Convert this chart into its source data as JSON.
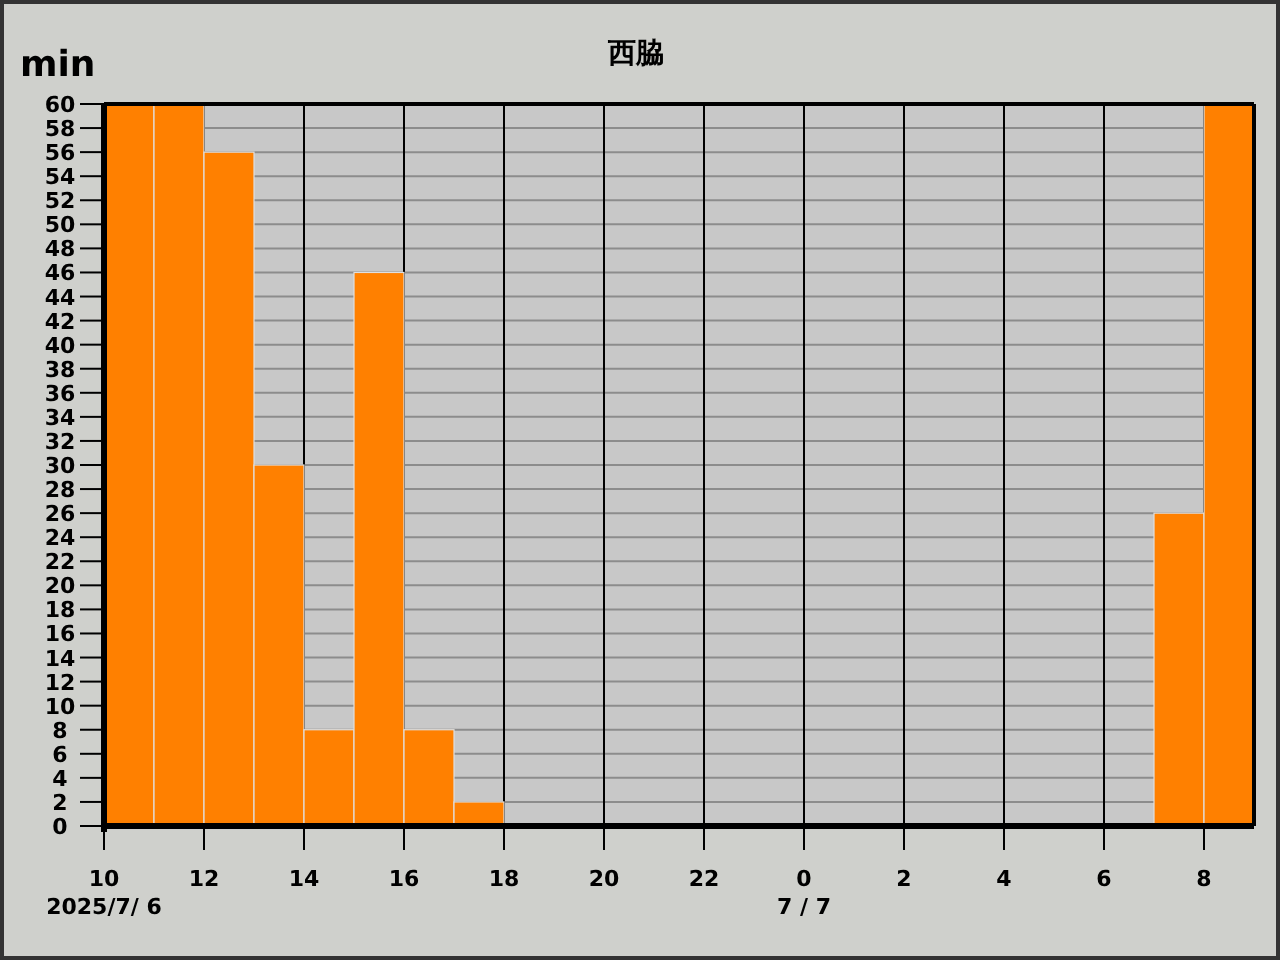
{
  "chart_data": {
    "type": "bar",
    "title": "西脇",
    "ylabel": "min",
    "x": [
      "2025-07-06T10:30",
      "2025-07-06T11:30",
      "2025-07-06T12:30",
      "2025-07-06T13:30",
      "2025-07-06T14:30",
      "2025-07-06T15:30",
      "2025-07-06T16:30",
      "2025-07-06T17:30",
      "2025-07-06T18:30",
      "2025-07-06T19:30",
      "2025-07-06T20:30",
      "2025-07-06T21:30",
      "2025-07-06T22:30",
      "2025-07-06T23:30",
      "2025-07-07T00:30",
      "2025-07-07T01:30",
      "2025-07-07T02:30",
      "2025-07-07T03:30",
      "2025-07-07T04:30",
      "2025-07-07T05:30",
      "2025-07-07T06:30",
      "2025-07-07T07:30",
      "2025-07-07T08:30"
    ],
    "values": [
      60,
      60,
      56,
      30,
      8,
      46,
      8,
      2,
      0,
      0,
      0,
      0,
      0,
      0,
      0,
      0,
      0,
      0,
      0,
      0,
      0,
      26,
      60
    ],
    "color": "#ff8000",
    "xlim": [
      "2025-07-06T10:00",
      "2025-07-07T09:00"
    ],
    "xticks": [
      {
        "value": "2025-07-06T10:00",
        "label": "10\n2025/7/ 6"
      },
      {
        "value": "2025-07-06T12:00",
        "label": "12"
      },
      {
        "value": "2025-07-06T14:00",
        "label": "14"
      },
      {
        "value": "2025-07-06T16:00",
        "label": "16"
      },
      {
        "value": "2025-07-06T18:00",
        "label": "18"
      },
      {
        "value": "2025-07-06T20:00",
        "label": "20"
      },
      {
        "value": "2025-07-06T22:00",
        "label": "22"
      },
      {
        "value": "2025-07-07T00:00",
        "label": "0\n7 / 7"
      },
      {
        "value": "2025-07-07T02:00",
        "label": "2"
      },
      {
        "value": "2025-07-07T04:00",
        "label": "4"
      },
      {
        "value": "2025-07-07T06:00",
        "label": "6"
      },
      {
        "value": "2025-07-07T08:00",
        "label": "8"
      }
    ],
    "ylim": [
      0,
      60
    ],
    "yticks": [
      0,
      2,
      4,
      6,
      8,
      10,
      12,
      14,
      16,
      18,
      20,
      22,
      24,
      26,
      28,
      30,
      32,
      34,
      36,
      38,
      40,
      42,
      44,
      46,
      48,
      50,
      52,
      54,
      56,
      58,
      60
    ],
    "grid": true
  }
}
